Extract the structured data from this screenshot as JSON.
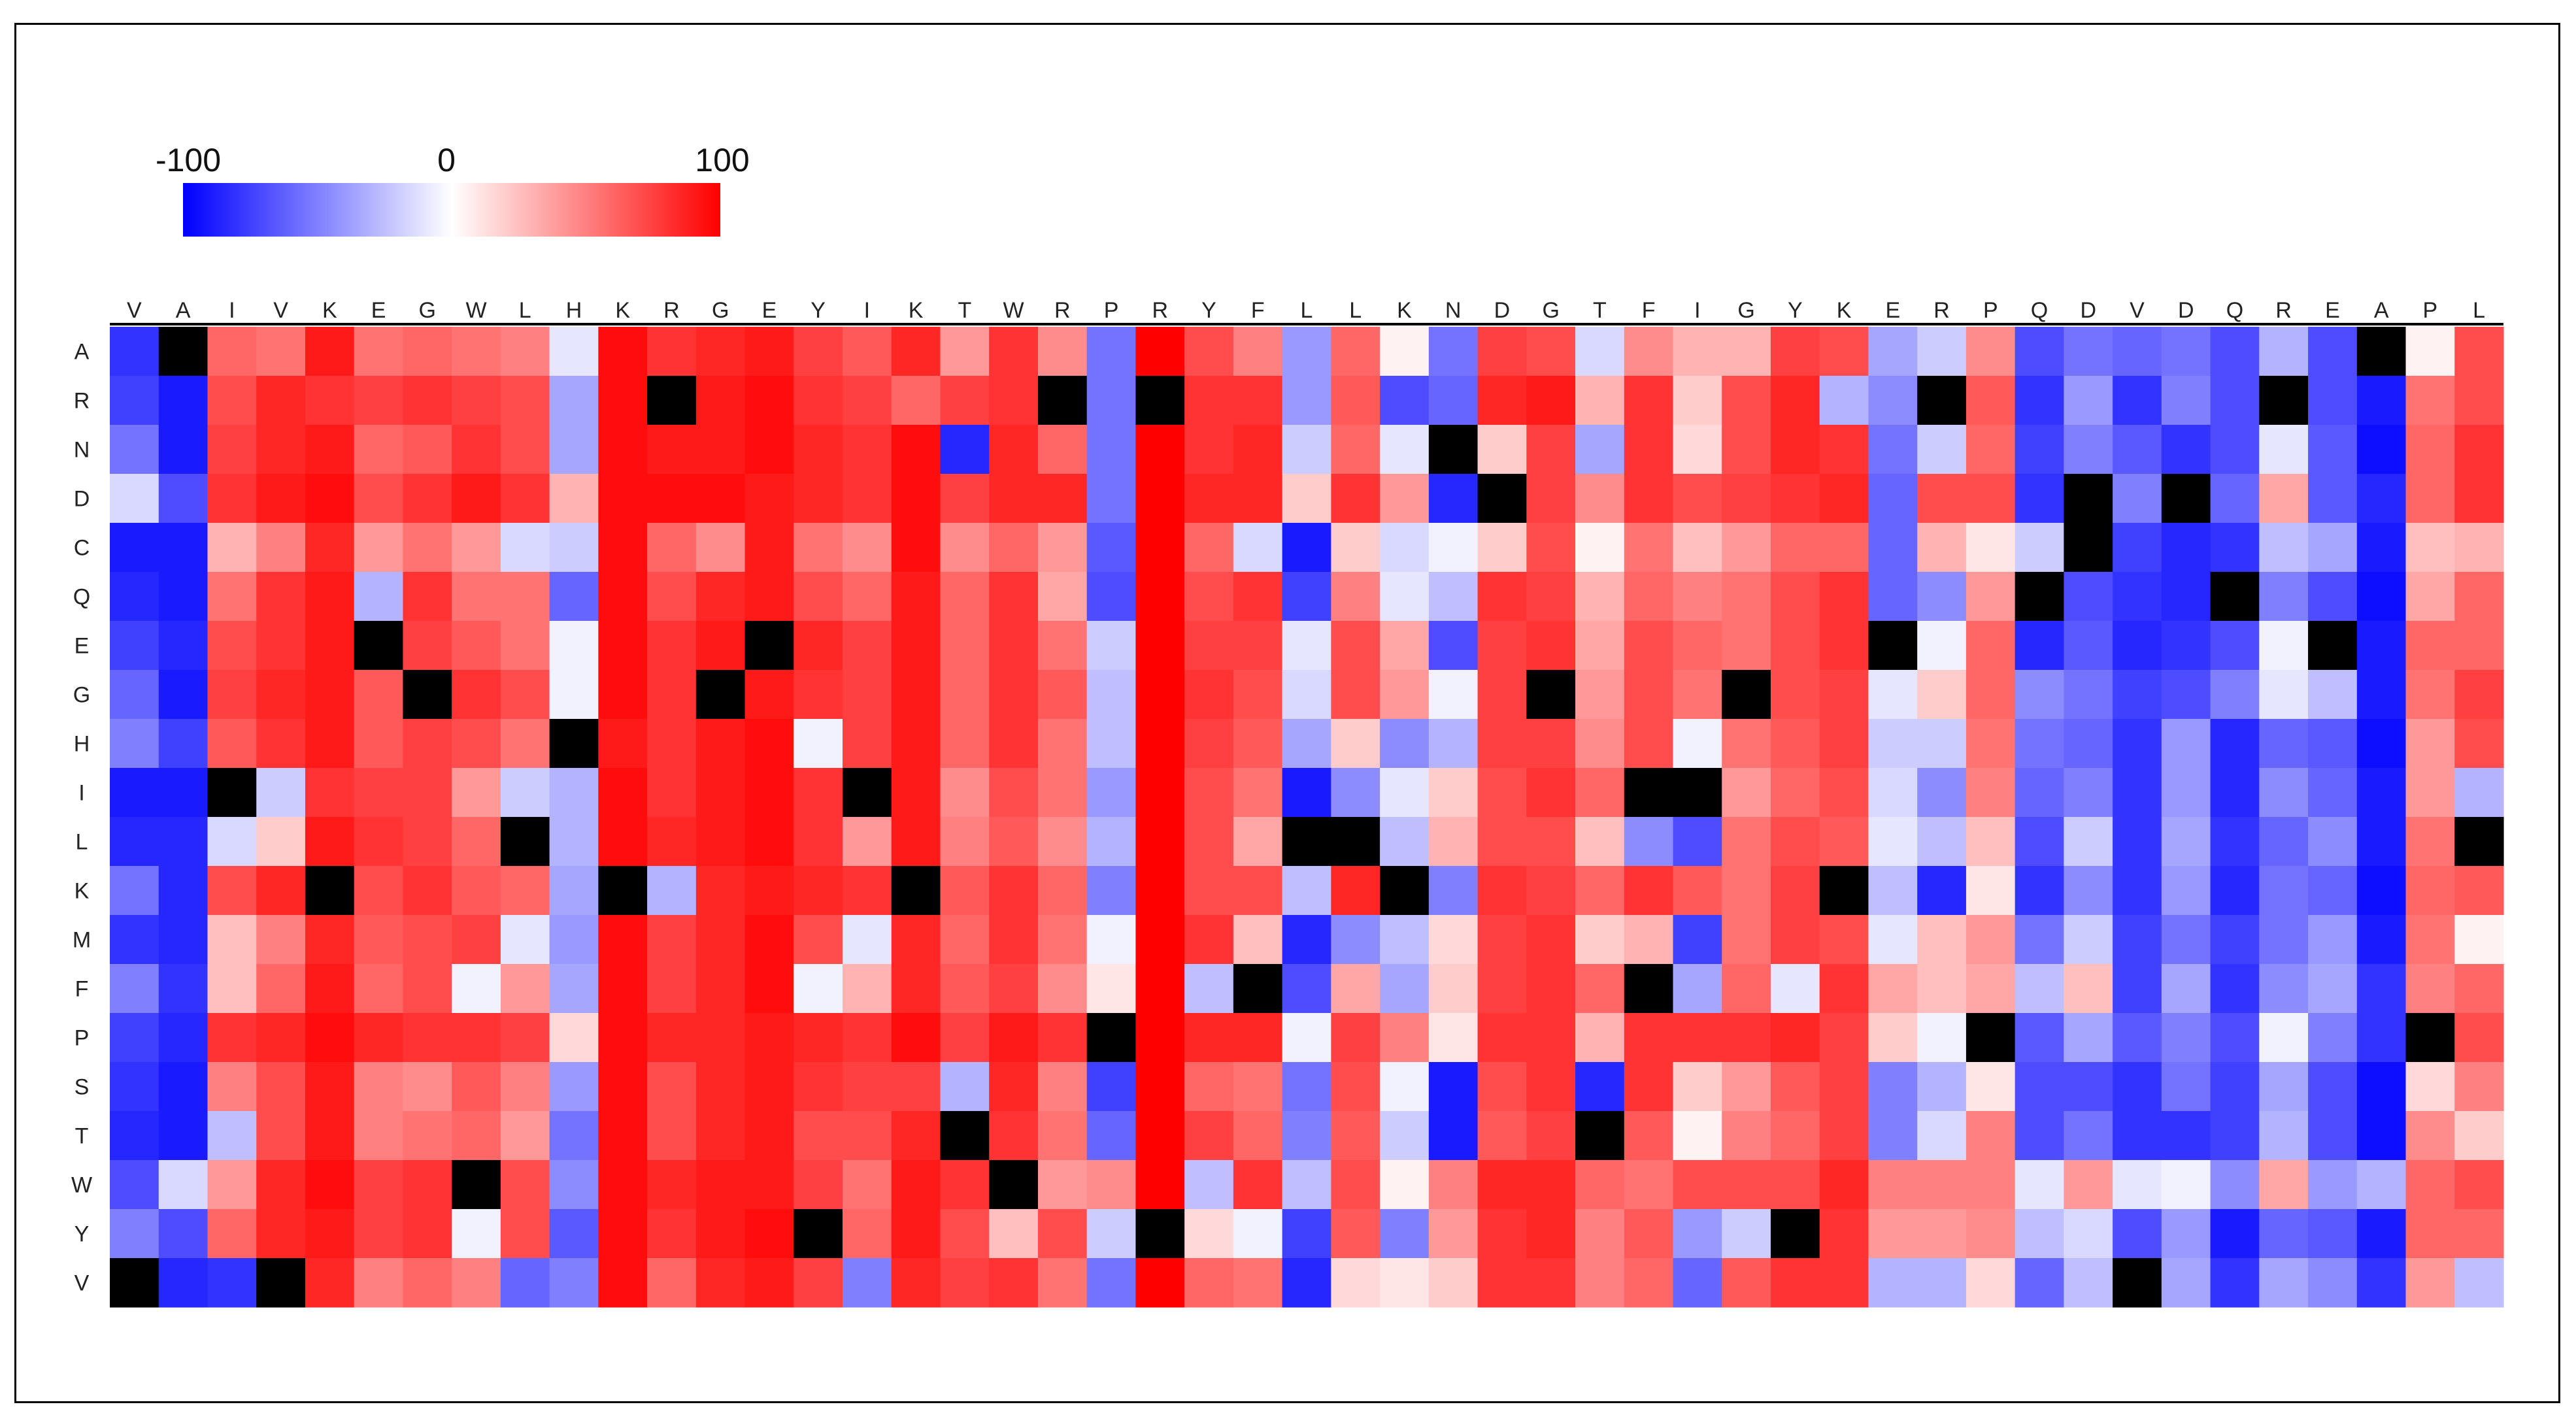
{
  "chart_data": {
    "type": "heatmap",
    "x_labels": [
      "V",
      "A",
      "I",
      "V",
      "K",
      "E",
      "G",
      "W",
      "L",
      "H",
      "K",
      "R",
      "G",
      "E",
      "Y",
      "I",
      "K",
      "T",
      "W",
      "R",
      "P",
      "R",
      "Y",
      "F",
      "L",
      "L",
      "K",
      "N",
      "D",
      "G",
      "T",
      "F",
      "I",
      "G",
      "Y",
      "K",
      "E",
      "R",
      "P",
      "Q",
      "D",
      "V",
      "D",
      "Q",
      "R",
      "E",
      "A",
      "P",
      "L"
    ],
    "y_labels": [
      "A",
      "R",
      "N",
      "D",
      "C",
      "Q",
      "E",
      "G",
      "H",
      "I",
      "L",
      "K",
      "M",
      "F",
      "P",
      "S",
      "T",
      "W",
      "Y",
      "V"
    ],
    "colorscale": {
      "min": -100,
      "mid": 0,
      "max": 100,
      "min_color": "#0000ff",
      "mid_color": "#ffffff",
      "max_color": "#ff0000",
      "na_color": "#000000"
    },
    "legend": {
      "min_label": "-100",
      "mid_label": "0",
      "max_label": "100",
      "placement": "top-left"
    },
    "grid": false,
    "values": [
      [
        -80,
        null,
        60,
        55,
        90,
        55,
        60,
        55,
        50,
        -10,
        95,
        80,
        85,
        90,
        75,
        65,
        85,
        40,
        80,
        45,
        -55,
        100,
        70,
        50,
        -40,
        60,
        5,
        -55,
        75,
        70,
        -15,
        45,
        30,
        30,
        75,
        70,
        -35,
        -20,
        45,
        -70,
        -55,
        -60,
        -55,
        -70,
        -30,
        -70,
        null,
        5,
        70
      ],
      [
        -75,
        -90,
        70,
        85,
        80,
        75,
        80,
        75,
        70,
        -35,
        95,
        null,
        90,
        95,
        80,
        75,
        60,
        75,
        80,
        null,
        -55,
        null,
        80,
        80,
        -40,
        65,
        -70,
        -60,
        85,
        90,
        30,
        80,
        20,
        70,
        85,
        -30,
        -45,
        null,
        65,
        -80,
        -40,
        -80,
        -50,
        -70,
        null,
        -70,
        -90,
        55,
        70
      ],
      [
        -55,
        -90,
        75,
        85,
        90,
        60,
        65,
        80,
        70,
        -35,
        95,
        90,
        90,
        95,
        85,
        80,
        95,
        -85,
        85,
        60,
        -55,
        100,
        80,
        85,
        -20,
        60,
        -10,
        null,
        20,
        75,
        -35,
        80,
        15,
        70,
        85,
        80,
        -55,
        -20,
        60,
        -75,
        -50,
        -65,
        -80,
        -70,
        -10,
        -65,
        -95,
        60,
        80
      ],
      [
        -15,
        -70,
        80,
        90,
        95,
        70,
        80,
        90,
        80,
        30,
        95,
        95,
        95,
        90,
        85,
        80,
        95,
        75,
        85,
        85,
        -55,
        100,
        85,
        85,
        20,
        80,
        40,
        -85,
        null,
        75,
        45,
        80,
        70,
        75,
        80,
        85,
        -60,
        70,
        70,
        -80,
        null,
        -50,
        null,
        -60,
        35,
        -65,
        -85,
        60,
        80
      ],
      [
        -90,
        -90,
        30,
        50,
        85,
        40,
        55,
        40,
        -15,
        -20,
        95,
        60,
        45,
        90,
        55,
        45,
        95,
        45,
        60,
        40,
        -65,
        100,
        60,
        -15,
        -90,
        20,
        -15,
        -5,
        20,
        70,
        5,
        55,
        25,
        40,
        60,
        60,
        -60,
        30,
        10,
        -20,
        null,
        -75,
        -85,
        -80,
        -25,
        -35,
        -90,
        25,
        30
      ],
      [
        -85,
        -90,
        55,
        80,
        90,
        -30,
        80,
        55,
        55,
        -60,
        95,
        70,
        85,
        90,
        70,
        60,
        90,
        60,
        80,
        35,
        -70,
        100,
        70,
        80,
        -75,
        50,
        -10,
        -25,
        80,
        75,
        30,
        60,
        50,
        55,
        70,
        80,
        -60,
        -45,
        40,
        null,
        -70,
        -80,
        -85,
        null,
        -50,
        -70,
        -95,
        35,
        60
      ],
      [
        -75,
        -85,
        70,
        80,
        90,
        null,
        75,
        65,
        55,
        -5,
        95,
        80,
        90,
        null,
        85,
        75,
        90,
        60,
        80,
        55,
        -20,
        100,
        75,
        75,
        -10,
        70,
        35,
        -70,
        75,
        80,
        35,
        70,
        60,
        55,
        70,
        80,
        null,
        -5,
        60,
        -85,
        -65,
        -85,
        -80,
        -70,
        -5,
        null,
        -90,
        60,
        60
      ],
      [
        -60,
        -90,
        75,
        85,
        90,
        65,
        null,
        80,
        70,
        -5,
        95,
        80,
        null,
        90,
        80,
        75,
        90,
        60,
        80,
        65,
        -25,
        100,
        80,
        70,
        -15,
        70,
        40,
        -5,
        75,
        null,
        40,
        70,
        55,
        null,
        70,
        75,
        -10,
        20,
        60,
        -45,
        -55,
        -75,
        -70,
        -50,
        -10,
        -25,
        -90,
        55,
        75
      ],
      [
        -50,
        -75,
        65,
        80,
        90,
        65,
        75,
        70,
        55,
        null,
        90,
        80,
        90,
        95,
        -5,
        75,
        90,
        60,
        80,
        55,
        -25,
        100,
        75,
        65,
        -35,
        20,
        -45,
        -30,
        75,
        75,
        45,
        70,
        -5,
        55,
        65,
        75,
        -20,
        -20,
        55,
        -55,
        -60,
        -80,
        -40,
        -85,
        -60,
        -65,
        -95,
        40,
        70
      ],
      [
        -90,
        -90,
        null,
        -20,
        80,
        75,
        75,
        40,
        -20,
        -30,
        95,
        80,
        90,
        95,
        80,
        null,
        90,
        45,
        70,
        55,
        -40,
        100,
        70,
        55,
        -90,
        -45,
        -10,
        20,
        70,
        80,
        60,
        null,
        null,
        40,
        60,
        70,
        -15,
        -45,
        50,
        -60,
        -50,
        -80,
        -40,
        -85,
        -45,
        -60,
        -90,
        40,
        -30
      ],
      [
        -85,
        -85,
        -15,
        20,
        90,
        80,
        75,
        60,
        null,
        -30,
        95,
        85,
        90,
        95,
        80,
        40,
        90,
        50,
        65,
        45,
        -30,
        100,
        70,
        35,
        null,
        null,
        -25,
        30,
        70,
        70,
        25,
        -45,
        -70,
        55,
        70,
        65,
        -10,
        -25,
        25,
        -70,
        -20,
        -80,
        -35,
        -80,
        -60,
        -45,
        -90,
        55,
        null
      ],
      [
        -55,
        -85,
        70,
        85,
        null,
        70,
        80,
        65,
        60,
        -35,
        null,
        -30,
        85,
        90,
        85,
        80,
        null,
        65,
        80,
        60,
        -50,
        100,
        70,
        70,
        -25,
        85,
        null,
        -50,
        80,
        75,
        60,
        80,
        65,
        55,
        75,
        null,
        -25,
        -85,
        10,
        -80,
        -45,
        -80,
        -40,
        -85,
        -55,
        -60,
        -95,
        60,
        65
      ],
      [
        -80,
        -85,
        25,
        50,
        85,
        65,
        70,
        75,
        -10,
        -40,
        95,
        75,
        85,
        95,
        70,
        -10,
        85,
        60,
        80,
        55,
        -5,
        100,
        80,
        25,
        -85,
        -45,
        -25,
        15,
        75,
        80,
        20,
        30,
        -75,
        55,
        75,
        70,
        -10,
        25,
        40,
        -55,
        -20,
        -75,
        -55,
        -75,
        -55,
        -40,
        -90,
        55,
        5
      ],
      [
        -50,
        -80,
        25,
        60,
        90,
        60,
        70,
        -5,
        40,
        -35,
        95,
        75,
        85,
        95,
        -5,
        30,
        85,
        65,
        75,
        45,
        10,
        100,
        -25,
        null,
        -70,
        35,
        -35,
        20,
        75,
        80,
        60,
        null,
        -35,
        60,
        -10,
        80,
        35,
        25,
        35,
        -25,
        25,
        -75,
        -35,
        -80,
        -45,
        -35,
        -80,
        50,
        60
      ],
      [
        -75,
        -85,
        80,
        85,
        95,
        85,
        80,
        80,
        75,
        15,
        95,
        85,
        85,
        90,
        85,
        80,
        95,
        75,
        90,
        80,
        null,
        100,
        85,
        85,
        -5,
        75,
        50,
        10,
        80,
        80,
        30,
        80,
        80,
        80,
        85,
        75,
        20,
        -5,
        null,
        -65,
        -35,
        -65,
        -50,
        -70,
        -5,
        -50,
        -80,
        null,
        70
      ],
      [
        -80,
        -90,
        50,
        70,
        90,
        50,
        45,
        65,
        50,
        -40,
        95,
        70,
        85,
        90,
        80,
        75,
        75,
        -30,
        85,
        50,
        -75,
        100,
        60,
        55,
        -55,
        70,
        -5,
        -90,
        70,
        80,
        -85,
        80,
        20,
        40,
        65,
        75,
        -50,
        -30,
        10,
        -70,
        -70,
        -80,
        -55,
        -75,
        -35,
        -70,
        -95,
        15,
        50
      ],
      [
        -85,
        -90,
        -25,
        70,
        90,
        50,
        55,
        60,
        40,
        -55,
        95,
        70,
        85,
        90,
        70,
        70,
        85,
        null,
        80,
        55,
        -60,
        100,
        75,
        60,
        -50,
        65,
        -20,
        -90,
        65,
        75,
        null,
        65,
        5,
        50,
        60,
        75,
        -50,
        -15,
        50,
        -70,
        -55,
        -80,
        -80,
        -75,
        -30,
        -70,
        -95,
        45,
        20
      ],
      [
        -70,
        -15,
        40,
        85,
        95,
        75,
        80,
        null,
        70,
        -45,
        95,
        85,
        90,
        90,
        75,
        55,
        90,
        80,
        null,
        40,
        45,
        100,
        -25,
        80,
        -25,
        70,
        5,
        50,
        85,
        85,
        60,
        55,
        70,
        70,
        70,
        85,
        50,
        50,
        50,
        -10,
        40,
        -10,
        -5,
        -45,
        35,
        -40,
        -30,
        60,
        70
      ],
      [
        -50,
        -70,
        60,
        85,
        90,
        75,
        80,
        -5,
        70,
        -65,
        95,
        80,
        90,
        95,
        null,
        60,
        90,
        70,
        25,
        70,
        -20,
        null,
        15,
        -5,
        -75,
        65,
        -50,
        40,
        80,
        85,
        50,
        65,
        -40,
        -20,
        null,
        80,
        40,
        40,
        45,
        -25,
        -15,
        -70,
        -40,
        -90,
        -60,
        -65,
        -90,
        60,
        60
      ],
      [
        null,
        -85,
        -80,
        null,
        85,
        50,
        60,
        50,
        -60,
        -50,
        95,
        60,
        85,
        90,
        75,
        -50,
        85,
        75,
        80,
        55,
        -55,
        100,
        60,
        55,
        -85,
        15,
        10,
        20,
        80,
        80,
        50,
        60,
        -60,
        65,
        80,
        80,
        -30,
        -30,
        15,
        -60,
        -25,
        null,
        -35,
        -80,
        -35,
        -45,
        -80,
        40,
        -25
      ]
    ]
  }
}
